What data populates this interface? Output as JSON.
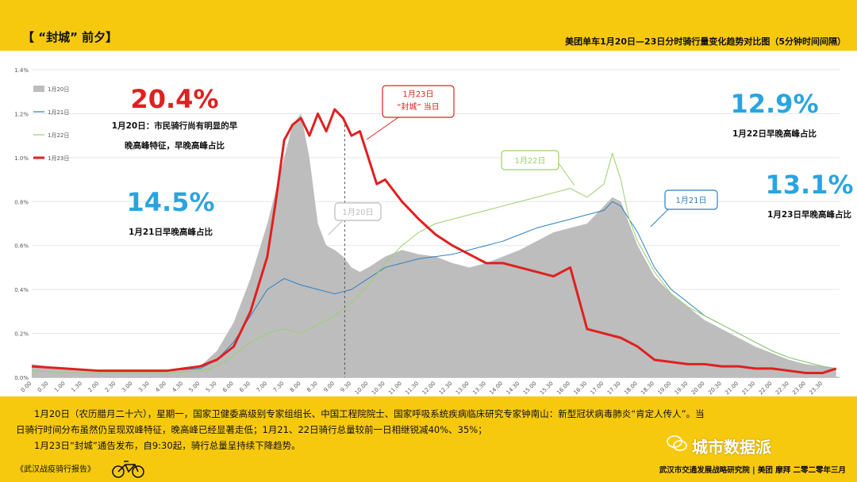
{
  "header": {
    "title": "【 “封城” 前夕】",
    "subtitle": "美团单车1月20日—23日分时骑行量变化趋势对比图（5分钟时间间隔）"
  },
  "stats": [
    {
      "value": "20.4%",
      "label_lines": [
        "1月20日：市民骑行尚有明显的早",
        "晚高峰特征，早晚高峰占比"
      ],
      "color": "#e02020"
    },
    {
      "value": "14.5%",
      "label_lines": [
        "1月21日早晚高峰占比"
      ],
      "color": "#2aa4e0"
    },
    {
      "value": "12.9%",
      "label_lines": [
        "1月22日早晚高峰占比"
      ],
      "color": "#2aa4e0"
    },
    {
      "value": "13.1%",
      "label_lines": [
        "1月23日早晚高峰占比"
      ],
      "color": "#2aa4e0"
    }
  ],
  "callouts": [
    {
      "text_lines": [
        "1月23日",
        "“封城” 当日"
      ],
      "color": "#e02020"
    },
    {
      "text_lines": [
        "1月20日"
      ],
      "color": "#bbbbbb"
    },
    {
      "text_lines": [
        "1月22日"
      ],
      "color": "#9ccf6c"
    },
    {
      "text_lines": [
        "1月21日"
      ],
      "color": "#2e7fc1"
    }
  ],
  "chart_data": {
    "type": "line",
    "ylim": [
      0,
      1.4
    ],
    "y_ticks": [
      "0.0%",
      "0.2%",
      "0.4%",
      "0.6%",
      "0.8%",
      "1.0%",
      "1.2%",
      "1.4%"
    ],
    "x_tick_labels": [
      "0.00",
      "0.30",
      "1.00",
      "1.30",
      "2.00",
      "2.30",
      "3.00",
      "3.30",
      "4.00",
      "4.30",
      "5.00",
      "5.30",
      "6.00",
      "6.30",
      "7.00",
      "7.30",
      "8.00",
      "8.30",
      "9.00",
      "9.30",
      "10.00",
      "10.30",
      "11.00",
      "11.30",
      "12.00",
      "12.30",
      "13.00",
      "13.30",
      "14.00",
      "14.30",
      "15.00",
      "15.30",
      "16.00",
      "16.30",
      "17.00",
      "17.30",
      "18.00",
      "18.30",
      "19.00",
      "19.30",
      "20.00",
      "20.30",
      "21.00",
      "21.30",
      "22.00",
      "22.30",
      "23.00",
      "23.30"
    ],
    "marker_time": "9.30",
    "series": [
      {
        "name": "1月20日",
        "style": "area",
        "color": "#bdbdbd",
        "x": [
          0,
          1,
          2,
          3,
          4,
          5,
          5.5,
          6,
          6.5,
          7,
          7.25,
          7.5,
          7.75,
          8,
          8.25,
          8.5,
          8.75,
          9,
          9.25,
          9.5,
          9.75,
          10,
          10.5,
          11,
          11.5,
          12,
          12.5,
          13,
          13.5,
          14,
          14.5,
          15,
          15.5,
          16,
          16.5,
          17,
          17.25,
          17.5,
          17.75,
          18,
          18.5,
          19,
          19.5,
          20,
          20.5,
          21,
          21.5,
          22,
          22.5,
          23,
          23.5,
          23.9
        ],
        "values": [
          0.06,
          0.04,
          0.03,
          0.03,
          0.03,
          0.05,
          0.12,
          0.25,
          0.45,
          0.7,
          0.85,
          1.0,
          1.15,
          1.2,
          1.0,
          0.7,
          0.6,
          0.58,
          0.55,
          0.5,
          0.48,
          0.5,
          0.55,
          0.58,
          0.56,
          0.55,
          0.52,
          0.5,
          0.52,
          0.55,
          0.58,
          0.62,
          0.66,
          0.68,
          0.7,
          0.78,
          0.82,
          0.8,
          0.7,
          0.6,
          0.46,
          0.38,
          0.32,
          0.26,
          0.22,
          0.18,
          0.14,
          0.11,
          0.08,
          0.06,
          0.05,
          0.04
        ]
      },
      {
        "name": "1月21日",
        "style": "line",
        "color": "#2e7fc1",
        "x": [
          0,
          1,
          2,
          3,
          4,
          5,
          5.5,
          6,
          6.5,
          7,
          7.5,
          8,
          8.5,
          9,
          9.5,
          10,
          10.5,
          11,
          11.5,
          12,
          12.5,
          13,
          13.5,
          14,
          14.5,
          15,
          15.5,
          16,
          16.5,
          17,
          17.25,
          17.5,
          17.75,
          18,
          18.5,
          19,
          19.5,
          20,
          20.5,
          21,
          21.5,
          22,
          22.5,
          23,
          23.5,
          23.9
        ],
        "values": [
          0.05,
          0.04,
          0.03,
          0.03,
          0.03,
          0.04,
          0.08,
          0.16,
          0.28,
          0.4,
          0.45,
          0.42,
          0.4,
          0.38,
          0.4,
          0.45,
          0.5,
          0.52,
          0.54,
          0.55,
          0.56,
          0.58,
          0.6,
          0.62,
          0.65,
          0.68,
          0.7,
          0.72,
          0.74,
          0.76,
          0.8,
          0.78,
          0.72,
          0.66,
          0.5,
          0.4,
          0.34,
          0.28,
          0.24,
          0.2,
          0.16,
          0.12,
          0.09,
          0.07,
          0.05,
          0.04
        ]
      },
      {
        "name": "1月22日",
        "style": "line",
        "color": "#9ccf6c",
        "x": [
          0,
          1,
          2,
          3,
          4,
          5,
          5.5,
          6,
          6.5,
          7,
          7.5,
          8,
          8.5,
          9,
          9.5,
          10,
          10.5,
          11,
          11.5,
          12,
          12.5,
          13,
          13.5,
          14,
          14.5,
          15,
          15.5,
          16,
          16.5,
          17,
          17.25,
          17.5,
          17.75,
          18,
          18.5,
          19,
          19.5,
          20,
          20.5,
          21,
          21.5,
          22,
          22.5,
          23,
          23.5,
          23.9
        ],
        "values": [
          0.03,
          0.02,
          0.02,
          0.02,
          0.02,
          0.03,
          0.05,
          0.1,
          0.16,
          0.2,
          0.22,
          0.2,
          0.24,
          0.28,
          0.34,
          0.42,
          0.52,
          0.6,
          0.66,
          0.7,
          0.72,
          0.74,
          0.76,
          0.78,
          0.8,
          0.82,
          0.84,
          0.86,
          0.82,
          0.88,
          1.02,
          0.9,
          0.72,
          0.62,
          0.48,
          0.38,
          0.32,
          0.28,
          0.24,
          0.2,
          0.16,
          0.12,
          0.09,
          0.07,
          0.05,
          0.04
        ]
      },
      {
        "name": "1月23日",
        "style": "line",
        "color": "#e02020",
        "x": [
          0,
          1,
          2,
          3,
          4,
          5,
          5.5,
          6,
          6.5,
          7,
          7.25,
          7.5,
          7.75,
          8,
          8.25,
          8.5,
          8.75,
          9,
          9.25,
          9.5,
          9.75,
          10,
          10.25,
          10.5,
          11,
          11.5,
          12,
          12.5,
          13,
          13.5,
          14,
          14.5,
          15,
          15.5,
          16,
          16.5,
          17,
          17.5,
          18,
          18.5,
          19,
          19.5,
          20,
          20.5,
          21,
          21.5,
          22,
          22.5,
          23,
          23.5,
          23.9
        ],
        "values": [
          0.05,
          0.04,
          0.03,
          0.03,
          0.03,
          0.05,
          0.08,
          0.14,
          0.3,
          0.55,
          0.8,
          1.08,
          1.15,
          1.18,
          1.1,
          1.2,
          1.12,
          1.22,
          1.18,
          1.1,
          1.12,
          1.0,
          0.88,
          0.9,
          0.8,
          0.72,
          0.65,
          0.6,
          0.56,
          0.52,
          0.52,
          0.5,
          0.48,
          0.46,
          0.5,
          0.22,
          0.2,
          0.18,
          0.14,
          0.08,
          0.07,
          0.06,
          0.06,
          0.05,
          0.05,
          0.04,
          0.04,
          0.03,
          0.02,
          0.02,
          0.04
        ]
      }
    ]
  },
  "footnote": [
    "1月20日（农历腊月二十六），星期一，国家卫健委高级别专家组组长、中国工程院院士、国家呼吸系统疾病临床研究专家钟南山：新型冠状病毒肺炎“肯定人传人”。当",
    "日骑行时间分布虽然仍呈现双峰特征，晚高峰已经显著走低；1月21、22日骑行总量较前一日相继锐减40%、35%；",
    "1月23日“封城”通告发布，自9:30起，骑行总量呈持续下降趋势。"
  ],
  "footer": {
    "source": "《武汉战疫骑行报告》",
    "org": "武汉市交通发展战略研究院 | 美团 摩拜  二零二零年三月",
    "watermark": "城市数据派"
  }
}
